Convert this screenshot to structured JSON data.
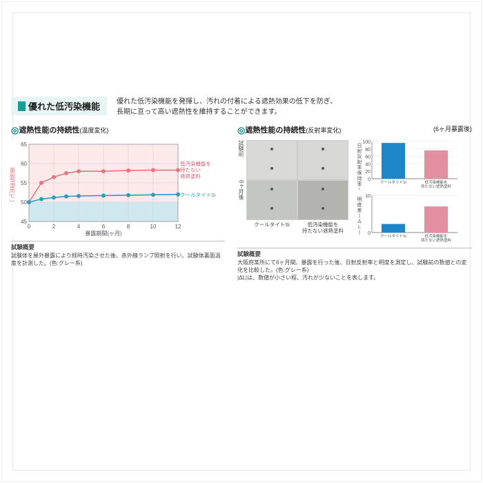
{
  "header": {
    "title": "優れた低汚染機能",
    "intro_line1": "優れた低汚染機能を発揮し、汚れの付着による遮熱効果の低下を防ぎ、",
    "intro_line2": "長期に亘って高い遮熱性を維持することができます。"
  },
  "left": {
    "subtitle_main": "遮熱性能の持続性",
    "subtitle_paren": "(温度変化)",
    "y_axis_label": "裏面温度(℃)",
    "x_axis_label": "暴露期間(ヶ月)",
    "legend_red": "低汚染機能を\n持たない\n遮熱塗料",
    "legend_blue": "クールタイトSi",
    "chart": {
      "type": "line",
      "ylim": [
        45,
        65
      ],
      "ytick_step": 5,
      "yticks": [
        45,
        50,
        55,
        60,
        65
      ],
      "xlim": [
        0,
        12
      ],
      "xtick_step": 2,
      "xticks": [
        0,
        2,
        4,
        6,
        8,
        10,
        12
      ],
      "bg_upper_color": "#fce9e9",
      "bg_lower_color": "#cfe8ef",
      "bg_split_y": 50,
      "grid_color": "#cccccc",
      "series": [
        {
          "name": "red",
          "color": "#e0797f",
          "marker_color": "#e0797f",
          "x": [
            0,
            1,
            2,
            3,
            4,
            6,
            8,
            10,
            12
          ],
          "y": [
            50,
            55,
            56.5,
            57.5,
            58,
            58,
            58.2,
            58.3,
            58.3
          ]
        },
        {
          "name": "blue",
          "color": "#2c9cc0",
          "marker_color": "#2c9cc0",
          "x": [
            0,
            1,
            2,
            3,
            4,
            6,
            8,
            10,
            12
          ],
          "y": [
            50,
            50.8,
            51.2,
            51.5,
            51.6,
            51.7,
            51.8,
            51.9,
            52
          ]
        }
      ],
      "line_width": 1.6,
      "marker_radius": 3
    },
    "note_title": "試験概要",
    "note_body": "試験体を屋外暴露により経時汚染させた後、赤外線ランプ照射を行い、試験体裏面温度を計測した。(色:グレー系)"
  },
  "right": {
    "subtitle_main": "遮熱性能の持続性",
    "subtitle_paren": "(反射率変化)",
    "subtitle_extra": "(6ヶ月暴露後)",
    "photos": {
      "row1_label": "試験前",
      "row2_label": "6ヶ月後",
      "col1_caption": "クールタイトSi",
      "col2_caption": "低汚染機能を\n持たない遮熱塗料",
      "colors": {
        "before_si": "#d9dad7",
        "before_other": "#d7d8d5",
        "after_si": "#c4c6c2",
        "after_other": "#b3b4af"
      }
    },
    "bar1": {
      "type": "bar",
      "y_label": "日射反射率保持率(%)",
      "ylim": [
        0,
        100
      ],
      "yticks": [
        0,
        20,
        40,
        60,
        80,
        100
      ],
      "categories": [
        "クールタイトSi",
        "低汚染機能を\n持たない遮熱塗料"
      ],
      "values": [
        96,
        76
      ],
      "colors": [
        "#1c86c8",
        "#e38fa0"
      ],
      "grid_color": "#e6e6e6",
      "axis_color": "#666666"
    },
    "bar2": {
      "type": "bar",
      "y_label": "明度差|ΔL|",
      "ylim": [
        0,
        10
      ],
      "yticks": [
        0,
        10
      ],
      "categories": [
        "クールタイトSi",
        "低汚染機能を\n持たない遮熱塗料"
      ],
      "values": [
        2.3,
        7.0
      ],
      "colors": [
        "#1c86c8",
        "#e38fa0"
      ],
      "grid_color": "#e6e6e6",
      "axis_color": "#666666"
    },
    "note_title": "試験概要",
    "note_body": "大阪府某所にて6ヶ月間、暴露を行った後、日射反射率と明度を測定し、試験前の数値との変化を比較した。(色:グレー系)\n|ΔL|は、数値が小さい程、汚れが少ないことを表します。"
  }
}
